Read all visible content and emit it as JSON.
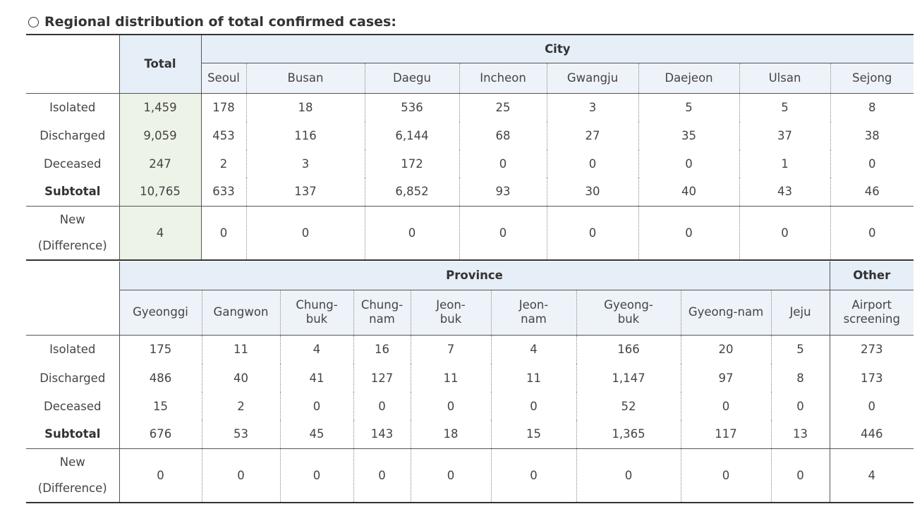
{
  "heading": "Regional distribution of total confirmed cases:",
  "table1": {
    "total_label": "Total",
    "group_label": "City",
    "columns": [
      "Seoul",
      "Busan",
      "Daegu",
      "Incheon",
      "Gwangju",
      "Daejeon",
      "Ulsan",
      "Sejong"
    ],
    "rows": [
      {
        "label": "Isolated",
        "total": "1,459",
        "values": [
          "178",
          "18",
          "536",
          "25",
          "3",
          "5",
          "5",
          "8"
        ]
      },
      {
        "label": "Discharged",
        "total": "9,059",
        "values": [
          "453",
          "116",
          "6,144",
          "68",
          "27",
          "35",
          "37",
          "38"
        ]
      },
      {
        "label": "Deceased",
        "total": "247",
        "values": [
          "2",
          "3",
          "172",
          "0",
          "0",
          "0",
          "1",
          "0"
        ]
      },
      {
        "label": "Subtotal",
        "total": "10,765",
        "values": [
          "633",
          "137",
          "6,852",
          "93",
          "30",
          "40",
          "43",
          "46"
        ]
      }
    ],
    "new_row": {
      "label_1": "New",
      "label_2": "(Difference)",
      "total": "4",
      "values": [
        "0",
        "0",
        "0",
        "0",
        "0",
        "0",
        "0",
        "0"
      ]
    }
  },
  "table2": {
    "group_label": "Province",
    "other_label": "Other",
    "columns": [
      {
        "line1": "Gyeonggi",
        "line2": ""
      },
      {
        "line1": "Gangwon",
        "line2": ""
      },
      {
        "line1": "Chung-",
        "line2": "buk"
      },
      {
        "line1": "Chung-",
        "line2": "nam"
      },
      {
        "line1": "Jeon-",
        "line2": "buk"
      },
      {
        "line1": "Jeon-",
        "line2": "nam"
      },
      {
        "line1": "Gyeong-",
        "line2": "buk"
      },
      {
        "line1": "Gyeong-nam",
        "line2": ""
      },
      {
        "line1": "Jeju",
        "line2": ""
      },
      {
        "line1": "Airport",
        "line2": "screening"
      }
    ],
    "rows": [
      {
        "label": "Isolated",
        "values": [
          "175",
          "11",
          "4",
          "16",
          "7",
          "4",
          "166",
          "20",
          "5",
          "273"
        ]
      },
      {
        "label": "Discharged",
        "values": [
          "486",
          "40",
          "41",
          "127",
          "11",
          "11",
          "1,147",
          "97",
          "8",
          "173"
        ]
      },
      {
        "label": "Deceased",
        "values": [
          "15",
          "2",
          "0",
          "0",
          "0",
          "0",
          "52",
          "0",
          "0",
          "0"
        ]
      },
      {
        "label": "Subtotal",
        "values": [
          "676",
          "53",
          "45",
          "143",
          "18",
          "15",
          "1,365",
          "117",
          "13",
          "446"
        ]
      }
    ],
    "new_row": {
      "label_1": "New",
      "label_2": "(Difference)",
      "values": [
        "0",
        "0",
        "0",
        "0",
        "0",
        "0",
        "0",
        "0",
        "0",
        "4"
      ]
    }
  }
}
